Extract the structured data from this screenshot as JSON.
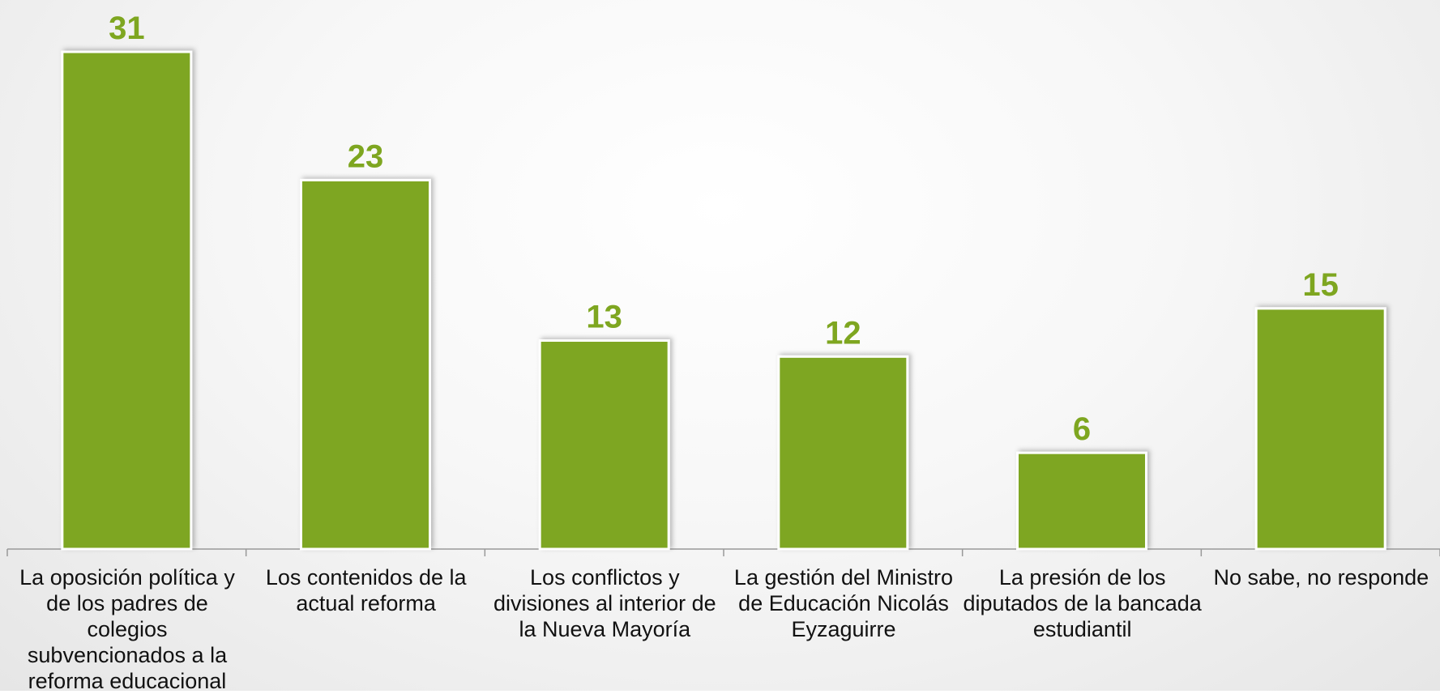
{
  "chart_data": {
    "type": "bar",
    "categories": [
      "La oposición política y de los padres de colegios subvencionados a la reforma educacional",
      "Los contenidos de la actual reforma",
      "Los conflictos y divisiones al interior de la Nueva Mayoría",
      "La gestión del Ministro de Educación Nicolás Eyzaguirre",
      "La presión de los diputados de la bancada estudiantil",
      "No sabe, no responde"
    ],
    "values": [
      31,
      23,
      13,
      12,
      6,
      15
    ],
    "color": "#7ea620"
  }
}
